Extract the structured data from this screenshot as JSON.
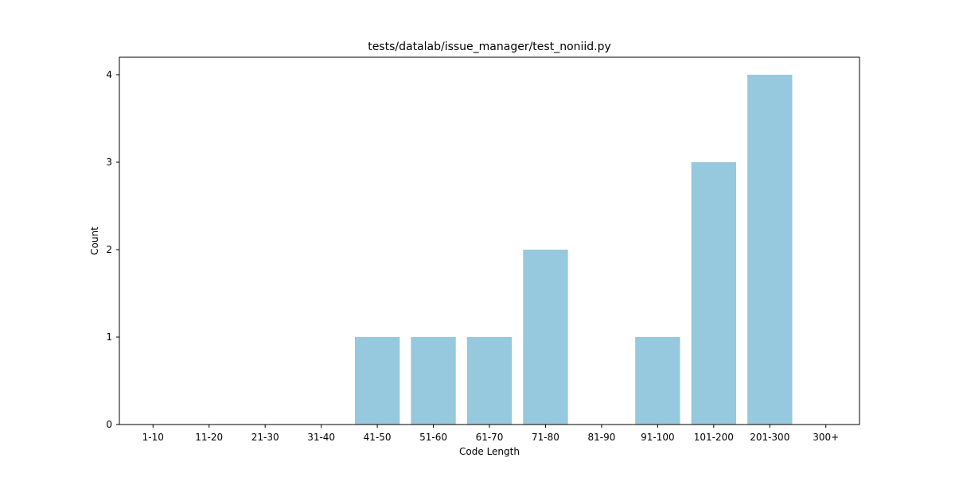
{
  "chart_data": {
    "type": "bar",
    "title": "tests/datalab/issue_manager/test_noniid.py",
    "xlabel": "Code Length",
    "ylabel": "Count",
    "categories": [
      "1-10",
      "11-20",
      "21-30",
      "31-40",
      "41-50",
      "51-60",
      "61-70",
      "71-80",
      "81-90",
      "91-100",
      "101-200",
      "201-300",
      "300+"
    ],
    "values": [
      0,
      0,
      0,
      0,
      1,
      1,
      1,
      2,
      0,
      1,
      3,
      4,
      0
    ],
    "yticks": [
      0,
      1,
      2,
      3,
      4
    ],
    "ylim": [
      0,
      4.2
    ],
    "bar_color": "#96c9dd",
    "grid": false,
    "legend": false
  }
}
